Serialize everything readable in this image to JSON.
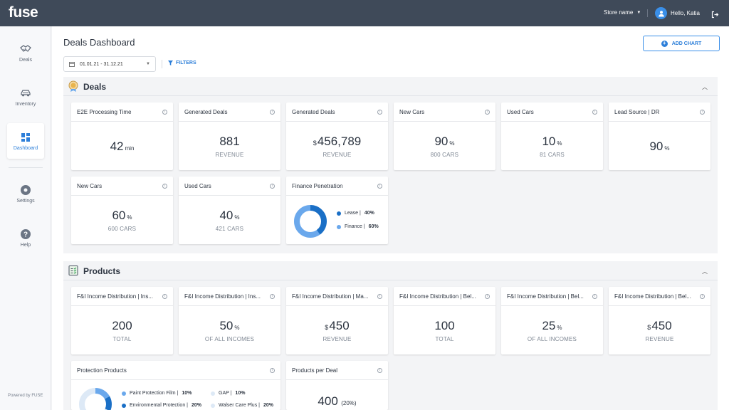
{
  "app": {
    "logo": "fuse",
    "store": "Store name",
    "greeting": "Hello, Katia"
  },
  "sidebar": {
    "items": [
      {
        "label": "Deals",
        "icon": "handshake-icon",
        "active": false
      },
      {
        "label": "Inventory",
        "icon": "car-icon",
        "active": false
      },
      {
        "label": "Dashboard",
        "icon": "grid-icon",
        "active": true
      },
      {
        "label": "Settings",
        "icon": "gear-icon",
        "active": false
      },
      {
        "label": "Help",
        "icon": "help-icon",
        "active": false
      }
    ],
    "powered": "Powered by FUSE"
  },
  "header": {
    "title": "Deals Dashboard",
    "add_chart": "ADD CHART",
    "date_range": "01.01.21 - 31.12.21",
    "filters": "FILTERS"
  },
  "deals": {
    "title": "Deals",
    "cards": [
      {
        "title": "E2E Processing Time",
        "value": "42",
        "unit": "min",
        "sub": ""
      },
      {
        "title": "Generated Deals",
        "value": "881",
        "unit": "",
        "sub": "REVENUE"
      },
      {
        "title": "Generated Deals",
        "prefix": "$",
        "value": "456,789",
        "unit": "",
        "sub": "REVENUE"
      },
      {
        "title": "New Cars",
        "value": "90",
        "unit": "%",
        "sub": "800 CARS"
      },
      {
        "title": "Used Cars",
        "value": "10",
        "unit": "%",
        "sub": "81 CARS"
      },
      {
        "title": "Lead Source | DR",
        "value": "90",
        "unit": "%",
        "sub": ""
      },
      {
        "title": "New Cars",
        "value": "60",
        "unit": "%",
        "sub": "600 CARS"
      },
      {
        "title": "Used Cars",
        "value": "40",
        "unit": "%",
        "sub": "421 CARS"
      }
    ],
    "finance": {
      "title": "Finance Penetration",
      "items": [
        {
          "label": "Lease | ",
          "value": "40%",
          "pct": 40,
          "color": "#1a6fc6"
        },
        {
          "label": "Finance | ",
          "value": "60%",
          "pct": 60,
          "color": "#6aa8ec"
        }
      ]
    }
  },
  "products": {
    "title": "Products",
    "cards": [
      {
        "title": "F&I Income Distribution | Ins...",
        "value": "200",
        "sub": "TOTAL"
      },
      {
        "title": "F&I Income Distribution | Ins...",
        "value": "50",
        "unit": "%",
        "sub": "OF ALL INCOMES"
      },
      {
        "title": "F&I Income Distribution | Ma...",
        "prefix": "$",
        "value": "450",
        "sub": "REVENUE"
      },
      {
        "title": "F&I Income Distribution | Bel...",
        "value": "100",
        "sub": "TOTAL"
      },
      {
        "title": "F&I Income Distribution | Bel...",
        "value": "25",
        "unit": "%",
        "sub": "OF ALL INCOMES"
      },
      {
        "title": "F&I Income Distribution | Bel...",
        "prefix": "$",
        "value": "450",
        "sub": "REVENUE"
      }
    ],
    "protection": {
      "title": "Protection Products",
      "items": [
        {
          "label": "Paint Protection Film | ",
          "value": "10%",
          "color": "#6aa8ec"
        },
        {
          "label": "GAP | ",
          "value": "10%",
          "color": "#dde9f6"
        },
        {
          "label": "Environmental Protection | ",
          "value": "20%",
          "color": "#1a6fc6"
        },
        {
          "label": "Walser Care Plus | ",
          "value": "20%",
          "color": "#dde9f6"
        }
      ]
    },
    "per_deal": {
      "title": "Products per Deal",
      "value": "400",
      "sub": "(20%)"
    }
  }
}
